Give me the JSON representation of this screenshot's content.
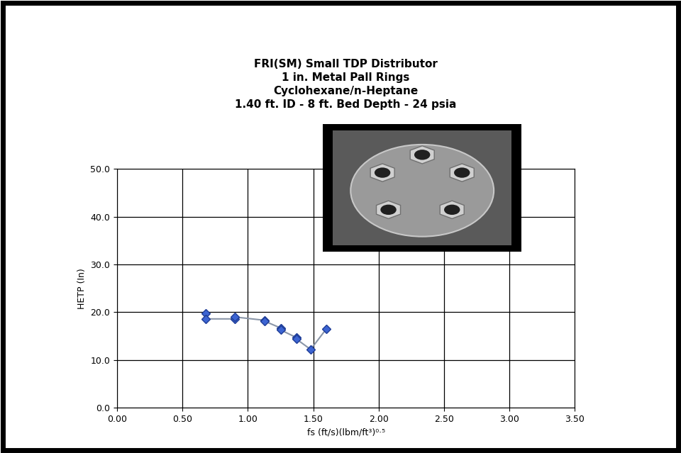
{
  "chart_data": {
    "type": "line",
    "title": "FRI(SM) Small TDP Distributor\n1 in. Metal Pall Rings\nCyclohexane/n-Heptane\n1.40 ft. ID - 8 ft. Bed Depth - 24 psia",
    "x_label": "fs (ft/s)(lbm/ft³)⁰·⁵",
    "y_label": "HETP (In)",
    "x": [
      0.68,
      0.68,
      0.9,
      0.9,
      1.13,
      1.13,
      1.25,
      1.25,
      1.37,
      1.37,
      1.48,
      1.6
    ],
    "values": [
      19.8,
      18.6,
      18.6,
      19.0,
      18.3,
      18.1,
      16.7,
      16.3,
      14.7,
      14.4,
      12.2,
      16.5
    ],
    "color": "#3c64d2",
    "marker": "diamond",
    "line_style": "solid",
    "xlim": [
      0,
      3.5
    ],
    "xticks": [
      {
        "value": 0,
        "label": "0.00"
      },
      {
        "value": 0.5,
        "label": "0.50"
      },
      {
        "value": 1,
        "label": "1.00"
      },
      {
        "value": 1.5,
        "label": "1.50"
      },
      {
        "value": 2,
        "label": "2.00"
      },
      {
        "value": 2.5,
        "label": "2.50"
      },
      {
        "value": 3,
        "label": "3.00"
      },
      {
        "value": 3.5,
        "label": "3.50"
      }
    ],
    "ylim": [
      0,
      50
    ],
    "yticks": [
      {
        "value": 0,
        "label": "0.0"
      },
      {
        "value": 10,
        "label": "10.0"
      },
      {
        "value": 20,
        "label": "20.0"
      },
      {
        "value": 30,
        "label": "30.0"
      },
      {
        "value": 40,
        "label": "40.0"
      },
      {
        "value": 50,
        "label": "50.0"
      }
    ],
    "grid": true
  }
}
